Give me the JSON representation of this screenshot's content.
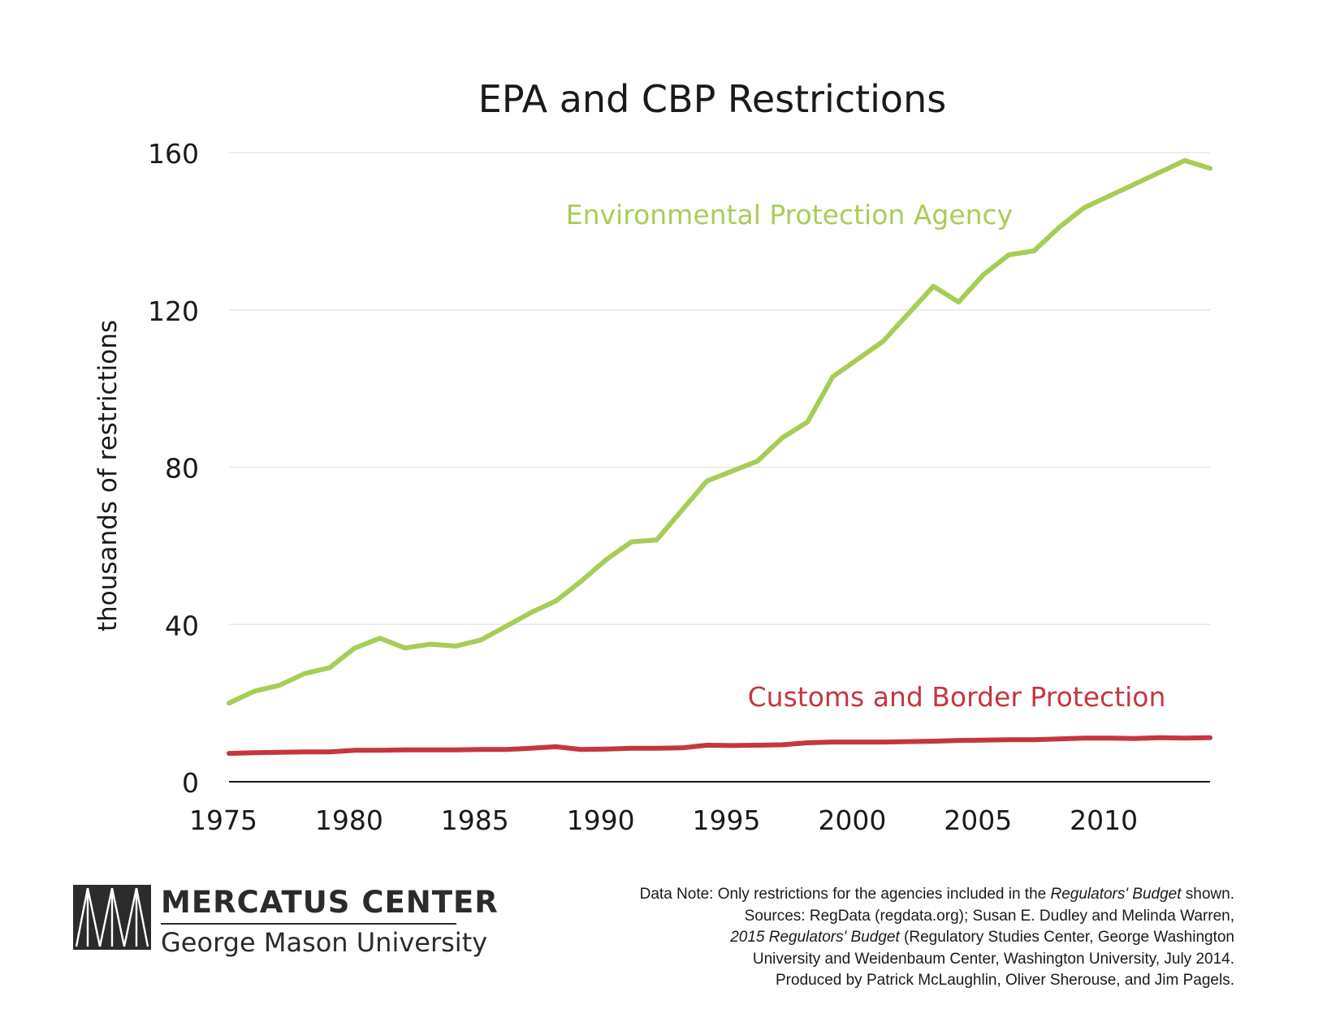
{
  "chart_data": {
    "type": "line",
    "title": "EPA and CBP Restrictions",
    "ylabel": "thousands of restrictions",
    "xlabel": "",
    "xlim": [
      1975,
      2014
    ],
    "ylim": [
      0,
      160
    ],
    "x_ticks": [
      1975,
      1980,
      1985,
      1990,
      1995,
      2000,
      2005,
      2010
    ],
    "y_ticks": [
      0,
      40,
      80,
      120,
      160
    ],
    "grid": true,
    "legend": "inline labels",
    "series": [
      {
        "name": "Environmental Protection Agency",
        "color": "#a8cd56",
        "x": [
          1975,
          1976,
          1977,
          1978,
          1979,
          1980,
          1981,
          1982,
          1983,
          1984,
          1985,
          1986,
          1987,
          1988,
          1989,
          1990,
          1991,
          1992,
          1993,
          1994,
          1995,
          1996,
          1997,
          1998,
          1999,
          2000,
          2001,
          2002,
          2003,
          2004,
          2005,
          2006,
          2007,
          2008,
          2009,
          2010,
          2011,
          2012,
          2013,
          2014
        ],
        "values": [
          20,
          23,
          24.5,
          27.5,
          29,
          34,
          36.5,
          34,
          35,
          34.5,
          36,
          39.5,
          43,
          46,
          51,
          56.5,
          61,
          61.5,
          69,
          76.5,
          79,
          81.5,
          87.5,
          91.5,
          103,
          107.5,
          112,
          119,
          126,
          122,
          129,
          134,
          135,
          141,
          146,
          149,
          152,
          155,
          158,
          156
        ]
      },
      {
        "name": "Customs and Border Protection",
        "color": "#c6363f",
        "x": [
          1975,
          1976,
          1977,
          1978,
          1979,
          1980,
          1981,
          1982,
          1983,
          1984,
          1985,
          1986,
          1987,
          1988,
          1989,
          1990,
          1991,
          1992,
          1993,
          1994,
          1995,
          1996,
          1997,
          1998,
          1999,
          2000,
          2001,
          2002,
          2003,
          2004,
          2005,
          2006,
          2007,
          2008,
          2009,
          2010,
          2011,
          2012,
          2013,
          2014
        ],
        "values": [
          7.2,
          7.4,
          7.5,
          7.6,
          7.6,
          8,
          8,
          8.1,
          8.1,
          8.1,
          8.2,
          8.2,
          8.5,
          8.9,
          8.2,
          8.3,
          8.5,
          8.5,
          8.6,
          9.3,
          9.2,
          9.3,
          9.4,
          9.9,
          10.1,
          10.1,
          10.1,
          10.2,
          10.3,
          10.5,
          10.6,
          10.7,
          10.7,
          10.9,
          11.1,
          11.1,
          11,
          11.2,
          11.1,
          11.2
        ]
      }
    ]
  },
  "logo": {
    "title": "MERCATUS CENTER",
    "subtitle": "George Mason University"
  },
  "note": {
    "line1_a": "Data Note: Only restrictions for the agencies included in the ",
    "line1_i": "Regulators' Budget",
    "line1_b": " shown.",
    "line2": "Sources: RegData (regdata.org); Susan E. Dudley and Melinda Warren,",
    "line3_i": "2015 Regulators' Budget",
    "line3_b": " (Regulatory Studies Center, George Washington",
    "line4": "University and Weidenbaum Center, Washington University, July 2014.",
    "line5": "Produced by Patrick McLaughlin, Oliver Sherouse, and Jim Pagels."
  }
}
